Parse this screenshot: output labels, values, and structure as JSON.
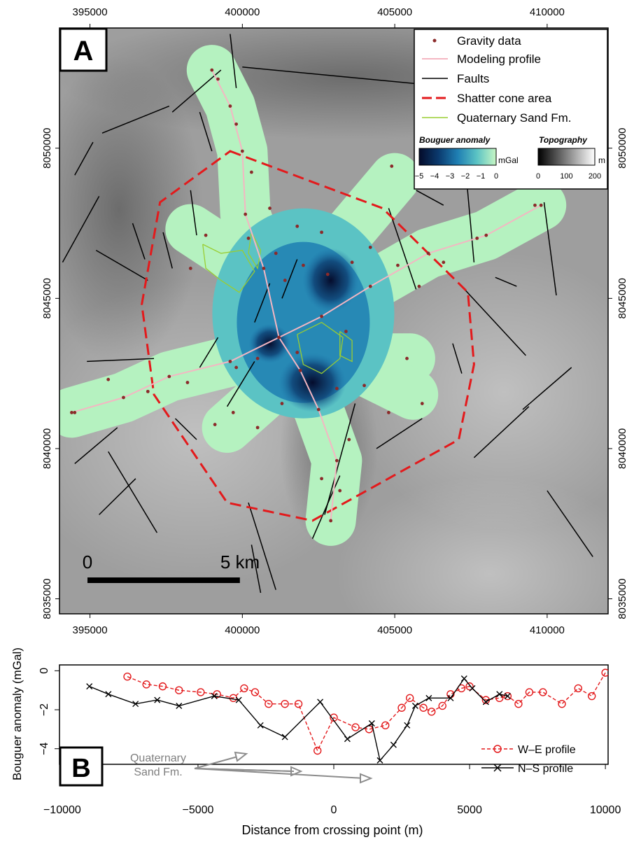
{
  "panel_a": {
    "label": "A",
    "x_ticks": [
      "395000",
      "400000",
      "405000",
      "410000"
    ],
    "y_ticks": [
      "8035000",
      "8040000",
      "8045000",
      "8050000"
    ],
    "x_range": [
      394000,
      412000
    ],
    "y_range": [
      8034500,
      8054000
    ],
    "legend": {
      "items": [
        {
          "label": "Gravity data",
          "symbol": "dot",
          "color": "#8b2a2a"
        },
        {
          "label": "Modeling profile",
          "symbol": "line",
          "color": "#f4b6c2"
        },
        {
          "label": "Faults",
          "symbol": "line",
          "color": "#000000"
        },
        {
          "label": "Shatter cone area",
          "symbol": "dashed-line",
          "color": "#e31a1c"
        },
        {
          "label": "Quaternary Sand Fm.",
          "symbol": "line",
          "color": "#9acd32"
        }
      ],
      "bouguer_title": "Bouguer anomaly",
      "bouguer_unit": "mGal",
      "bouguer_ticks": [
        "−5",
        "−4",
        "−3",
        "−2",
        "−1",
        "0"
      ],
      "topo_title": "Topography",
      "topo_unit": "m",
      "topo_ticks": [
        "0",
        "100",
        "200"
      ]
    },
    "scale_bar": {
      "start_label": "0",
      "end_label": "5 km",
      "length_m": 5000
    },
    "shatter_cone_polygon": [
      [
        399600,
        8049900
      ],
      [
        404600,
        8048000
      ],
      [
        407400,
        8045200
      ],
      [
        407600,
        8042800
      ],
      [
        407100,
        8040300
      ],
      [
        402300,
        8037600
      ],
      [
        399500,
        8038200
      ],
      [
        397100,
        8041800
      ],
      [
        396700,
        8044800
      ],
      [
        397300,
        8048200
      ]
    ],
    "profile_we": [
      [
        394400,
        8041200
      ],
      [
        396100,
        8041700
      ],
      [
        397600,
        8042400
      ],
      [
        399600,
        8042900
      ],
      [
        401200,
        8043700
      ],
      [
        402600,
        8044400
      ],
      [
        404200,
        8045400
      ],
      [
        406100,
        8046500
      ],
      [
        408000,
        8047100
      ],
      [
        409800,
        8048100
      ]
    ],
    "profile_ns": [
      [
        399000,
        8052600
      ],
      [
        399600,
        8051400
      ],
      [
        400000,
        8049900
      ],
      [
        400100,
        8047800
      ],
      [
        400700,
        8046000
      ],
      [
        401200,
        8043700
      ],
      [
        401900,
        8042600
      ],
      [
        402500,
        8041300
      ],
      [
        403100,
        8039600
      ],
      [
        402900,
        8037600
      ]
    ],
    "gravity_points": [
      [
        399200,
        8052300
      ],
      [
        399800,
        8050800
      ],
      [
        400300,
        8049200
      ],
      [
        400200,
        8047000
      ],
      [
        401400,
        8045600
      ],
      [
        402800,
        8045800
      ],
      [
        403600,
        8046200
      ],
      [
        404200,
        8046700
      ],
      [
        405100,
        8046100
      ],
      [
        405800,
        8045400
      ],
      [
        406600,
        8046200
      ],
      [
        407700,
        8047000
      ],
      [
        409600,
        8048100
      ],
      [
        405400,
        8043000
      ],
      [
        405900,
        8041500
      ],
      [
        404800,
        8041200
      ],
      [
        403200,
        8038600
      ],
      [
        403500,
        8040300
      ],
      [
        402600,
        8039000
      ],
      [
        401300,
        8041500
      ],
      [
        400500,
        8040700
      ],
      [
        399700,
        8041200
      ],
      [
        399100,
        8040800
      ],
      [
        398200,
        8042200
      ],
      [
        396900,
        8041900
      ],
      [
        395600,
        8042300
      ],
      [
        394500,
        8041200
      ],
      [
        398800,
        8047100
      ],
      [
        398300,
        8046000
      ],
      [
        401800,
        8047400
      ],
      [
        402000,
        8046100
      ],
      [
        404900,
        8049400
      ],
      [
        405700,
        8049100
      ],
      [
        401800,
        8043200
      ],
      [
        400500,
        8043000
      ],
      [
        403400,
        8043900
      ],
      [
        399800,
        8042700
      ],
      [
        403100,
        8042000
      ],
      [
        404000,
        8042100
      ],
      [
        401100,
        8046500
      ],
      [
        400900,
        8048000
      ],
      [
        402600,
        8047200
      ]
    ],
    "faults": [
      [
        [
          399600,
          8053800
        ],
        [
          399800,
          8052000
        ]
      ],
      [
        [
          400000,
          8052700
        ],
        [
          406200,
          8052100
        ]
      ],
      [
        [
          397700,
          8051200
        ],
        [
          399300,
          8052600
        ]
      ],
      [
        [
          395400,
          8050500
        ],
        [
          397600,
          8051400
        ]
      ],
      [
        [
          394500,
          8049100
        ],
        [
          395100,
          8050200
        ]
      ],
      [
        [
          398600,
          8051200
        ],
        [
          399000,
          8049900
        ]
      ],
      [
        [
          394100,
          8046200
        ],
        [
          395300,
          8048400
        ]
      ],
      [
        [
          396400,
          8047500
        ],
        [
          396800,
          8046300
        ]
      ],
      [
        [
          397400,
          8047200
        ],
        [
          397700,
          8046000
        ]
      ],
      [
        [
          398300,
          8048600
        ],
        [
          398500,
          8047100
        ]
      ],
      [
        [
          395200,
          8046600
        ],
        [
          396900,
          8045600
        ]
      ],
      [
        [
          404800,
          8048000
        ],
        [
          405700,
          8045300
        ]
      ],
      [
        [
          405700,
          8048600
        ],
        [
          406600,
          8048100
        ]
      ],
      [
        [
          407300,
          8049600
        ],
        [
          407600,
          8046200
        ]
      ],
      [
        [
          409900,
          8048200
        ],
        [
          410300,
          8045100
        ]
      ],
      [
        [
          407200,
          8045400
        ],
        [
          409300,
          8043100
        ]
      ],
      [
        [
          408300,
          8045700
        ],
        [
          409000,
          8045400
        ]
      ],
      [
        [
          406900,
          8043500
        ],
        [
          407200,
          8042500
        ]
      ],
      [
        [
          409200,
          8041300
        ],
        [
          410800,
          8042700
        ]
      ],
      [
        [
          407600,
          8039700
        ],
        [
          409400,
          8041400
        ]
      ],
      [
        [
          401300,
          8045000
        ],
        [
          401800,
          8046300
        ]
      ],
      [
        [
          400400,
          8044200
        ],
        [
          400900,
          8045500
        ]
      ],
      [
        [
          399500,
          8041400
        ],
        [
          400400,
          8042900
        ]
      ],
      [
        [
          398600,
          8042700
        ],
        [
          399200,
          8043700
        ]
      ],
      [
        [
          394900,
          8042900
        ],
        [
          397100,
          8043000
        ]
      ],
      [
        [
          397800,
          8041000
        ],
        [
          398500,
          8040300
        ]
      ],
      [
        [
          402700,
          8037800
        ],
        [
          403700,
          8041500
        ]
      ],
      [
        [
          402300,
          8037000
        ],
        [
          403200,
          8039100
        ]
      ],
      [
        [
          404400,
          8040000
        ],
        [
          405900,
          8041000
        ]
      ],
      [
        [
          400300,
          8036800
        ],
        [
          400600,
          8035200
        ]
      ],
      [
        [
          400200,
          8038200
        ],
        [
          401100,
          8035300
        ]
      ],
      [
        [
          395300,
          8037800
        ],
        [
          396500,
          8039000
        ]
      ],
      [
        [
          395600,
          8039900
        ],
        [
          397200,
          8037200
        ]
      ],
      [
        [
          394500,
          8039500
        ],
        [
          395900,
          8040700
        ]
      ],
      [
        [
          410000,
          8038600
        ],
        [
          411500,
          8036400
        ]
      ]
    ],
    "sand_outlines": [
      [
        [
          398700,
          8046800
        ],
        [
          399300,
          8046500
        ],
        [
          400000,
          8046600
        ],
        [
          400400,
          8045900
        ],
        [
          399900,
          8045200
        ],
        [
          399300,
          8045600
        ],
        [
          398800,
          8046000
        ],
        [
          398700,
          8046800
        ]
      ],
      [
        [
          400300,
          8047200
        ],
        [
          400600,
          8046600
        ],
        [
          400500,
          8046000
        ],
        [
          400200,
          8046500
        ],
        [
          400300,
          8047200
        ]
      ],
      [
        [
          401800,
          8043800
        ],
        [
          402600,
          8044200
        ],
        [
          403300,
          8043700
        ],
        [
          403200,
          8043000
        ],
        [
          402600,
          8042500
        ],
        [
          402000,
          8042800
        ],
        [
          401800,
          8043800
        ]
      ],
      [
        [
          403200,
          8043900
        ],
        [
          403600,
          8043600
        ],
        [
          403600,
          8042900
        ],
        [
          403200,
          8043100
        ],
        [
          403200,
          8043900
        ]
      ]
    ]
  },
  "panel_b": {
    "label": "B",
    "ylabel": "Bouguer anomaly (mGal)",
    "xlabel": "Distance from crossing point (m)",
    "x_ticks": [
      "−10000",
      "−5000",
      "0",
      "5000",
      "10000"
    ],
    "y_ticks": [
      "0",
      "−2",
      "−4"
    ],
    "annotation": [
      "Quaternary",
      "Sand Fm."
    ],
    "legend": [
      "W–E profile",
      "N–S profile"
    ]
  },
  "chart_data": {
    "type": "line",
    "xlabel": "Distance from crossing point (m)",
    "ylabel": "Bouguer anomaly (mGal)",
    "xlim": [
      -10100,
      10100
    ],
    "ylim": [
      -4.8,
      0.3
    ],
    "series": [
      {
        "name": "W–E profile",
        "color": "#e31a1c",
        "marker": "circle",
        "dashed": true,
        "x": [
          -7600,
          -6900,
          -6300,
          -5700,
          -4900,
          -4300,
          -3700,
          -3300,
          -2900,
          -2400,
          -1800,
          -1300,
          -600,
          0,
          800,
          1300,
          1900,
          2500,
          2800,
          3300,
          3600,
          4000,
          4300,
          4700,
          5000,
          5600,
          6100,
          6400,
          6800,
          7200,
          7700,
          8400,
          9000,
          9500,
          10000
        ],
        "y": [
          -0.3,
          -0.7,
          -0.8,
          -1.0,
          -1.1,
          -1.2,
          -1.4,
          -0.9,
          -1.1,
          -1.7,
          -1.7,
          -1.7,
          -4.1,
          -2.4,
          -2.9,
          -3.0,
          -2.8,
          -1.9,
          -1.4,
          -1.9,
          -2.1,
          -1.8,
          -1.2,
          -0.9,
          -0.8,
          -1.5,
          -1.4,
          -1.3,
          -1.7,
          -1.1,
          -1.1,
          -1.7,
          -0.9,
          -1.3,
          -0.1
        ]
      },
      {
        "name": "N–S profile",
        "color": "#000000",
        "marker": "x",
        "dashed": false,
        "x": [
          -9000,
          -8300,
          -7300,
          -6500,
          -5700,
          -4400,
          -3500,
          -2700,
          -1800,
          -500,
          500,
          1400,
          1700,
          2200,
          2700,
          3000,
          3500,
          4300,
          4800,
          5100,
          5600,
          6100,
          6400
        ],
        "y": [
          -0.8,
          -1.2,
          -1.7,
          -1.5,
          -1.8,
          -1.3,
          -1.5,
          -2.8,
          -3.4,
          -1.6,
          -3.5,
          -2.7,
          -4.6,
          -3.8,
          -2.8,
          -1.8,
          -1.4,
          -1.4,
          -0.4,
          -0.9,
          -1.6,
          -1.2,
          -1.3
        ]
      }
    ]
  }
}
